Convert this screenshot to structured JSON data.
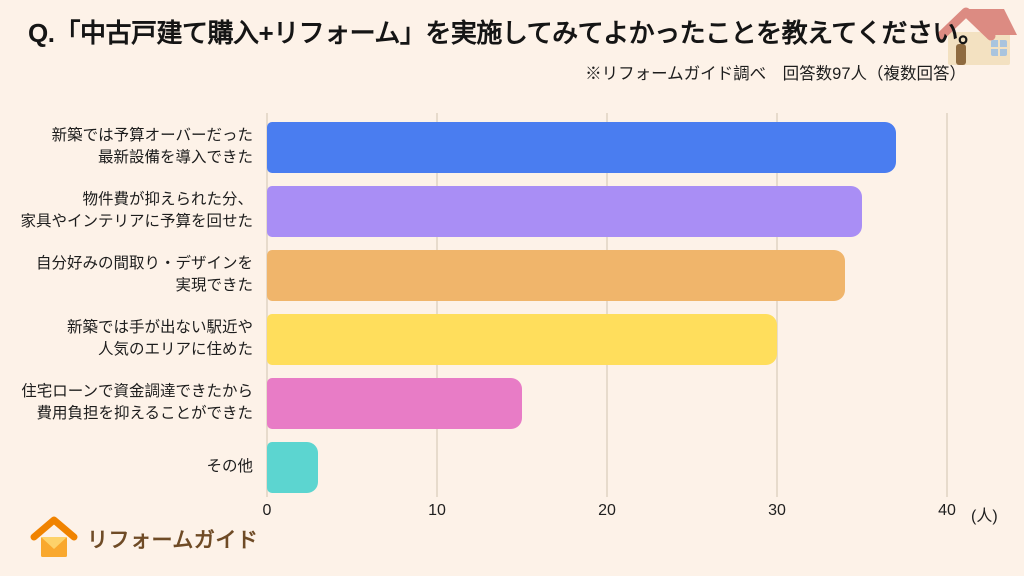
{
  "page": {
    "background": "#fdf2e8",
    "title": "Q.「中古戸建て購入+リフォーム」を実施してみてよかったことを教えてください。",
    "subtitle": "※リフォームガイド調べ　回答数97人（複数回答）"
  },
  "logo": {
    "text": "リフォームガイド"
  },
  "icons": {
    "top_right": "house-emoji-icon",
    "logo": "house-logo-icon"
  },
  "chart_data": {
    "type": "bar",
    "orientation": "horizontal",
    "title": "Q.「中古戸建て購入+リフォーム」を実施してみてよかったことを教えてください。",
    "source_note": "※リフォームガイド調べ　回答数97人（複数回答）",
    "categories": [
      [
        "新築では予算オーバーだった",
        "最新設備を導入できた"
      ],
      [
        "物件費が抑えられた分、",
        "家具やインテリアに予算を回せた"
      ],
      [
        "自分好みの間取り・デザインを",
        "実現できた"
      ],
      [
        "新築では手が出ない駅近や",
        "人気のエリアに住めた"
      ],
      [
        "住宅ローンで資金調達できたから",
        "費用負担を抑えることができた"
      ],
      [
        "その他"
      ]
    ],
    "values": [
      37,
      35,
      34,
      30,
      15,
      3
    ],
    "colors": [
      "#4a7df0",
      "#a98ef5",
      "#f0b56b",
      "#ffde5c",
      "#e87cc6",
      "#5cd5d0"
    ],
    "x_ticks": [
      0,
      10,
      20,
      30,
      40
    ],
    "x_unit": "(人)",
    "xlim": [
      0,
      42.5
    ],
    "ylabel": "",
    "xlabel": "",
    "grid": "vertical",
    "gridline_color": "#e7dbcc",
    "legend": "none"
  }
}
